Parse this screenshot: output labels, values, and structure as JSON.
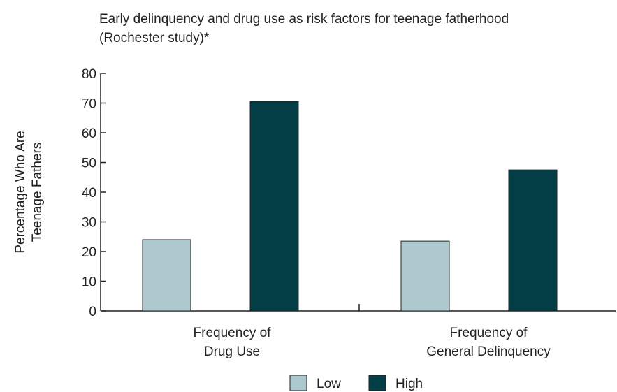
{
  "chart_data": {
    "type": "bar",
    "title_line1": "Early delinquency and drug use as risk factors for teenage fatherhood",
    "title_line2": "(Rochester study)*",
    "categories": [
      [
        "Frequency of",
        "Drug Use"
      ],
      [
        "Frequency of",
        "General Delinquency"
      ]
    ],
    "series": [
      {
        "name": "Low",
        "color": "#adc8cf",
        "values": [
          24,
          23.5
        ]
      },
      {
        "name": "High",
        "color": "#033e47",
        "values": [
          70.5,
          47.5
        ]
      }
    ],
    "ylabel_lines": [
      "Percentage Who Are",
      "Teenage Fathers"
    ],
    "ylim": [
      0,
      80
    ],
    "yticks": [
      0,
      10,
      20,
      30,
      40,
      50,
      60,
      70,
      80
    ],
    "grid": false,
    "legend_position": "bottom"
  }
}
